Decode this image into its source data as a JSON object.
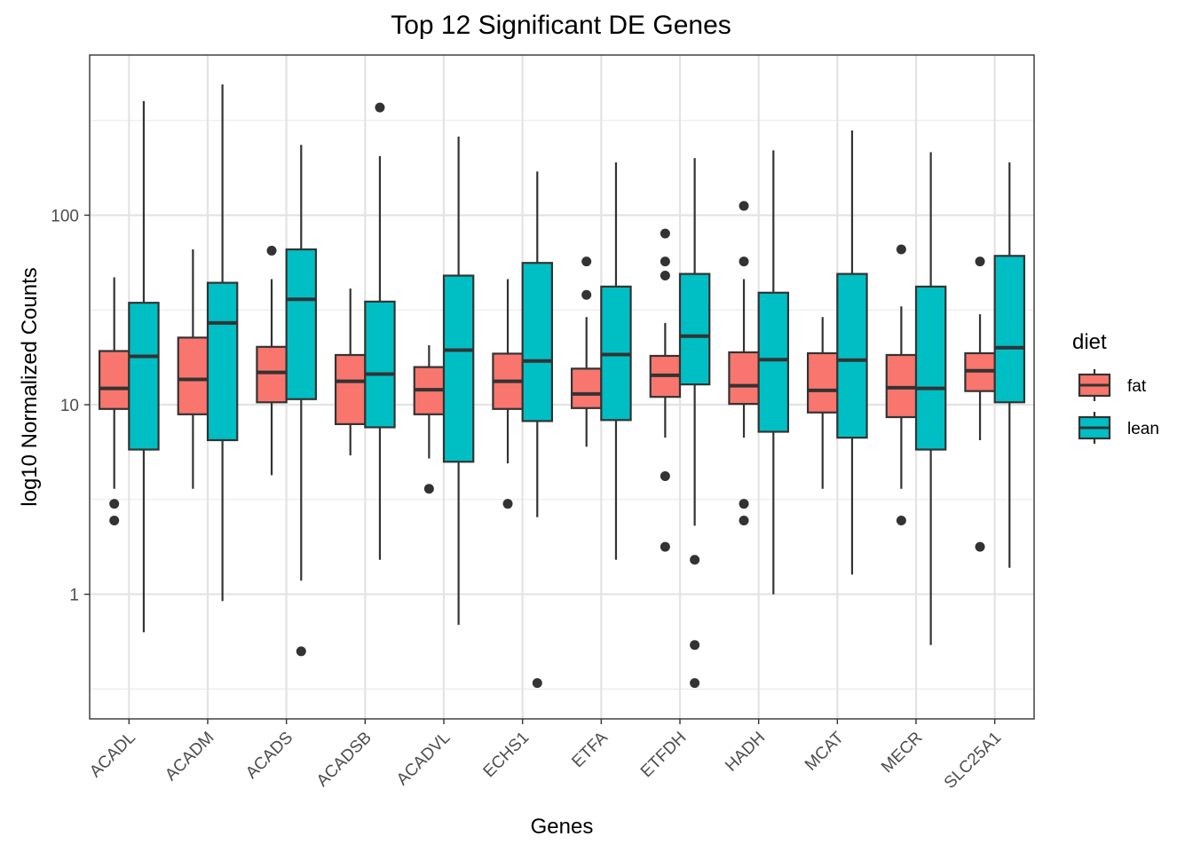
{
  "chart_data": {
    "type": "boxplot",
    "title": "Top 12 Significant DE Genes",
    "xlabel": "Genes",
    "ylabel": "log10 Normalized Counts",
    "y_scale": "log10",
    "ylim": [
      0.22,
      700
    ],
    "y_ticks": [
      1,
      10,
      100
    ],
    "y_tick_labels": [
      "1",
      "10",
      "100"
    ],
    "grid": true,
    "legend": {
      "title": "diet",
      "position": "right"
    },
    "categories": [
      "ACADL",
      "ACADM",
      "ACADS",
      "ACADSB",
      "ACADVL",
      "ECHS1",
      "ETFA",
      "ETFDH",
      "HADH",
      "MCAT",
      "MECR",
      "SLC25A1"
    ],
    "series": [
      {
        "name": "fat",
        "color": "#F8766D",
        "boxes": [
          {
            "whisker_low": 3.6,
            "q1": 9.5,
            "median": 12.2,
            "q3": 19.2,
            "whisker_high": 47,
            "outliers": [
              3.0,
              2.45
            ]
          },
          {
            "whisker_low": 3.6,
            "q1": 8.9,
            "median": 13.6,
            "q3": 22.6,
            "whisker_high": 66,
            "outliers": []
          },
          {
            "whisker_low": 4.25,
            "q1": 10.3,
            "median": 14.8,
            "q3": 20.2,
            "whisker_high": 46,
            "outliers": [
              65
            ]
          },
          {
            "whisker_low": 5.4,
            "q1": 7.9,
            "median": 13.3,
            "q3": 18.3,
            "whisker_high": 41,
            "outliers": []
          },
          {
            "whisker_low": 5.2,
            "q1": 8.9,
            "median": 12.0,
            "q3": 15.8,
            "whisker_high": 20.6,
            "outliers": [
              3.6
            ]
          },
          {
            "whisker_low": 4.9,
            "q1": 9.5,
            "median": 13.3,
            "q3": 18.6,
            "whisker_high": 46,
            "outliers": [
              3.0
            ]
          },
          {
            "whisker_low": 6.0,
            "q1": 9.6,
            "median": 11.4,
            "q3": 15.5,
            "whisker_high": 29,
            "outliers": [
              57,
              38
            ]
          },
          {
            "whisker_low": 6.7,
            "q1": 11.0,
            "median": 14.3,
            "q3": 18.1,
            "whisker_high": 27,
            "outliers": [
              80,
              57,
              48,
              4.2,
              1.78
            ]
          },
          {
            "whisker_low": 6.7,
            "q1": 10.1,
            "median": 12.6,
            "q3": 18.9,
            "whisker_high": 46,
            "outliers": [
              112,
              57,
              3.0,
              2.45
            ]
          },
          {
            "whisker_low": 3.6,
            "q1": 9.1,
            "median": 11.9,
            "q3": 18.7,
            "whisker_high": 29,
            "outliers": []
          },
          {
            "whisker_low": 3.6,
            "q1": 8.6,
            "median": 12.3,
            "q3": 18.3,
            "whisker_high": 33,
            "outliers": [
              66,
              2.45
            ]
          },
          {
            "whisker_low": 6.5,
            "q1": 11.8,
            "median": 15.1,
            "q3": 18.7,
            "whisker_high": 30,
            "outliers": [
              57,
              1.78
            ]
          }
        ]
      },
      {
        "name": "lean",
        "color": "#00BFC4",
        "boxes": [
          {
            "whisker_low": 0.63,
            "q1": 5.8,
            "median": 18.0,
            "q3": 34.5,
            "whisker_high": 400,
            "outliers": []
          },
          {
            "whisker_low": 0.92,
            "q1": 6.5,
            "median": 27.0,
            "q3": 44,
            "whisker_high": 490,
            "outliers": []
          },
          {
            "whisker_low": 1.18,
            "q1": 10.7,
            "median": 36,
            "q3": 66,
            "whisker_high": 235,
            "outliers": [
              0.5
            ]
          },
          {
            "whisker_low": 1.52,
            "q1": 7.6,
            "median": 14.5,
            "q3": 35,
            "whisker_high": 205,
            "outliers": [
              370
            ]
          },
          {
            "whisker_low": 0.69,
            "q1": 5.0,
            "median": 19.4,
            "q3": 48,
            "whisker_high": 260,
            "outliers": []
          },
          {
            "whisker_low": 2.55,
            "q1": 8.2,
            "median": 17.0,
            "q3": 56,
            "whisker_high": 170,
            "outliers": [
              0.34
            ]
          },
          {
            "whisker_low": 1.52,
            "q1": 8.3,
            "median": 18.4,
            "q3": 42,
            "whisker_high": 190,
            "outliers": []
          },
          {
            "whisker_low": 2.3,
            "q1": 12.8,
            "median": 23.0,
            "q3": 49,
            "whisker_high": 200,
            "outliers": [
              1.52,
              0.54,
              0.34
            ]
          },
          {
            "whisker_low": 1.0,
            "q1": 7.2,
            "median": 17.3,
            "q3": 39,
            "whisker_high": 220,
            "outliers": []
          },
          {
            "whisker_low": 1.27,
            "q1": 6.7,
            "median": 17.2,
            "q3": 49,
            "whisker_high": 280,
            "outliers": []
          },
          {
            "whisker_low": 0.54,
            "q1": 5.8,
            "median": 12.2,
            "q3": 42,
            "whisker_high": 215,
            "outliers": []
          },
          {
            "whisker_low": 1.38,
            "q1": 10.3,
            "median": 20.0,
            "q3": 61,
            "whisker_high": 190,
            "outliers": []
          }
        ]
      }
    ]
  }
}
